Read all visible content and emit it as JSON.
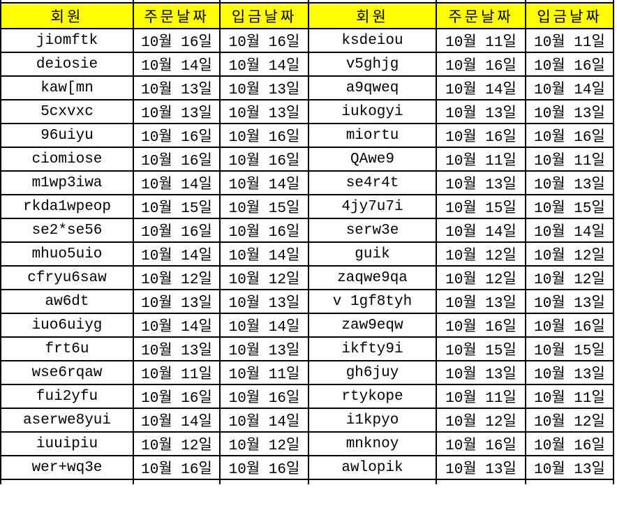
{
  "colors": {
    "header_bg": "#ffff00",
    "grid_border": "#000000",
    "cell_bg": "#ffffff",
    "text": "#000000"
  },
  "header": {
    "member": "회원",
    "order_date": "주문날짜",
    "deposit_date": "입금날짜"
  },
  "rows": [
    [
      "jiomftk",
      "10월 16일",
      "10월 16일",
      "ksdeiou",
      "10월 11일",
      "10월 11일"
    ],
    [
      "deiosie",
      "10월 14일",
      "10월 14일",
      "v5ghjg",
      "10월 16일",
      "10월 16일"
    ],
    [
      "kaw[mn",
      "10월 13일",
      "10월 13일",
      "a9qweq",
      "10월 14일",
      "10월 14일"
    ],
    [
      "5cxvxc",
      "10월 13일",
      "10월 13일",
      "iukogyi",
      "10월 13일",
      "10월 13일"
    ],
    [
      "96uiyu",
      "10월 16일",
      "10월 16일",
      "miortu",
      "10월 16일",
      "10월 16일"
    ],
    [
      "ciomiose",
      "10월 16일",
      "10월 16일",
      "QAwe9",
      "10월 11일",
      "10월 11일"
    ],
    [
      "m1wp3iwa",
      "10월 14일",
      "10월 14일",
      "se4r4t",
      "10월 13일",
      "10월 13일"
    ],
    [
      "rkda1wpeop",
      "10월 15일",
      "10월 15일",
      "4jy7u7i",
      "10월 15일",
      "10월 15일"
    ],
    [
      "se2*se56",
      "10월 16일",
      "10월 16일",
      "serw3e",
      "10월 14일",
      "10월 14일"
    ],
    [
      "mhuo5uio",
      "10월 14일",
      "10월 14일",
      "guik",
      "10월 12일",
      "10월 12일"
    ],
    [
      "cfryu6saw",
      "10월 12일",
      "10월 12일",
      "zaqwe9qa",
      "10월 12일",
      "10월 12일"
    ],
    [
      "aw6dt",
      "10월 13일",
      "10월 13일",
      "v 1gf8tyh",
      "10월 13일",
      "10월 13일"
    ],
    [
      "iuo6uiyg",
      "10월 14일",
      "10월 14일",
      "zaw9eqw",
      "10월 16일",
      "10월 16일"
    ],
    [
      "frt6u",
      "10월 13일",
      "10월 13일",
      "ikfty9i",
      "10월 15일",
      "10월 15일"
    ],
    [
      "wse6rqaw",
      "10월 11일",
      "10월 11일",
      "gh6juy",
      "10월 13일",
      "10월 13일"
    ],
    [
      "fui2yfu",
      "10월 16일",
      "10월 16일",
      "rtykope",
      "10월 11일",
      "10월 11일"
    ],
    [
      "aserwe8yui",
      "10월 14일",
      "10월 14일",
      "i1kpyo",
      "10월 12일",
      "10월 12일"
    ],
    [
      "iuuipiu",
      "10월 12일",
      "10월 12일",
      "mnknoy",
      "10월 16일",
      "10월 16일"
    ],
    [
      "wer+wq3e",
      "10월 16일",
      "10월 16일",
      "awlopik",
      "10월 13일",
      "10월 13일"
    ]
  ]
}
